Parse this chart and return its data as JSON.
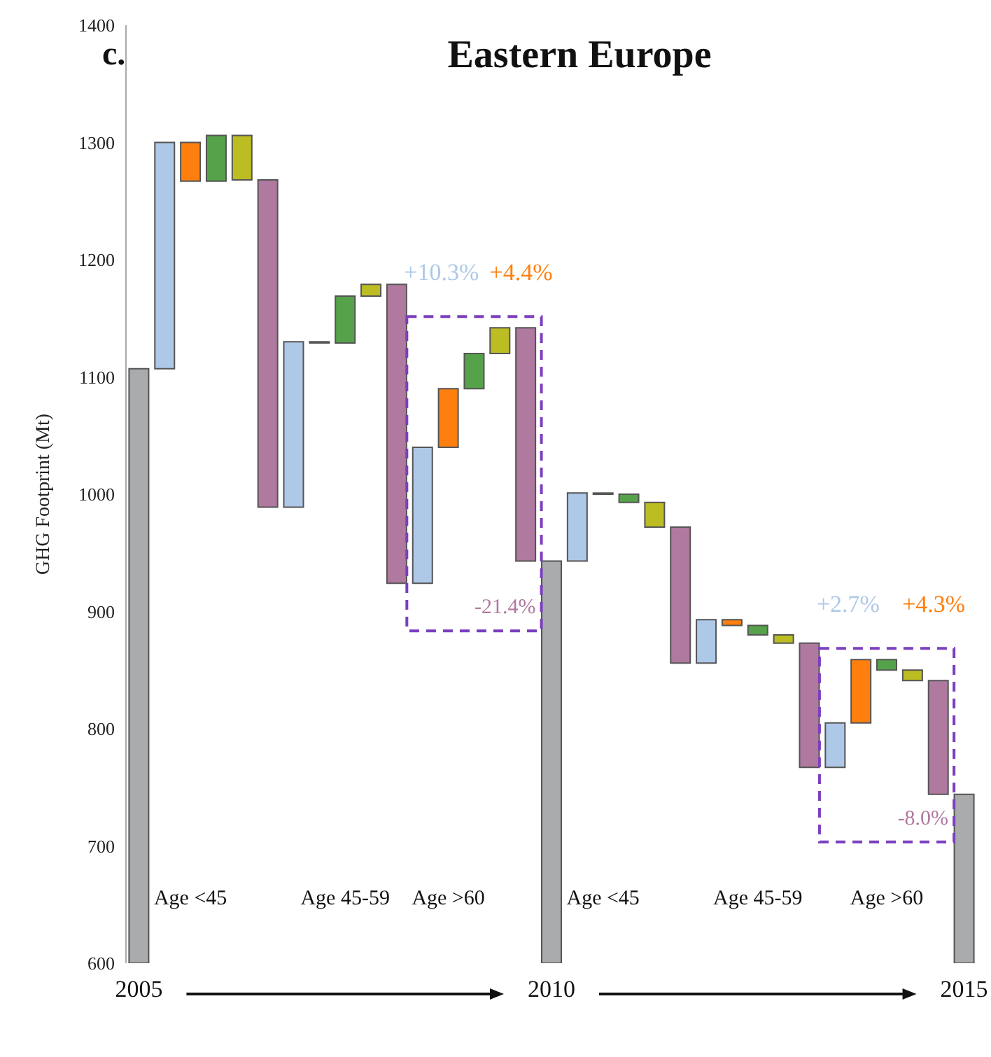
{
  "chart_data": {
    "type": "bar",
    "title": "Eastern Europe",
    "ylabel": "GHG Footprint (Mt)",
    "annotations": [
      "c.",
      "+10.3%",
      "+4.4%",
      "-21.4%",
      "+2.7%",
      "+4.3%",
      "-8.0%"
    ],
    "categories": [
      "2005",
      null,
      "Age <45",
      null,
      null,
      null,
      null,
      null,
      "Age 45-59",
      null,
      null,
      null,
      "Age >60",
      null,
      null,
      null,
      "2010",
      null,
      "Age <45",
      null,
      null,
      null,
      null,
      null,
      "Age 45-59",
      null,
      null,
      null,
      null,
      "Age >60",
      null,
      null,
      "2015"
    ],
    "base": [
      600,
      1107,
      1300,
      1267,
      1306,
      1268,
      989,
      1130,
      1129,
      1169,
      1179,
      924,
      1040,
      1090,
      1120,
      1142,
      600,
      943,
      1001,
      1000,
      993,
      972,
      856,
      893,
      888,
      880,
      873,
      767,
      805,
      859,
      850,
      841,
      600
    ],
    "values": [
      507,
      193,
      -33,
      39,
      -38,
      -279,
      141,
      -1,
      40,
      10,
      -255,
      116,
      50,
      30,
      22,
      -199,
      343,
      58,
      -1,
      -7,
      -21,
      -116,
      37,
      -5,
      -8,
      -7,
      -106,
      38,
      54,
      -9,
      -9,
      -97,
      144
    ],
    "colors": [
      "#a9abac",
      "#aec8e8",
      "#ff7f0e",
      "#55a24a",
      "#bcbd22",
      "#b0799f",
      "#aec8e8",
      "#333333",
      "#55a24a",
      "#bcbd22",
      "#b0799f",
      "#aec8e8",
      "#ff7f0e",
      "#55a24a",
      "#bcbd22",
      "#b0799f",
      "#a9abac",
      "#aec8e8",
      "#333333",
      "#55a24a",
      "#bcbd22",
      "#b0799f",
      "#aec8e8",
      "#ff7f0e",
      "#55a24a",
      "#bcbd22",
      "#b0799f",
      "#aec8e8",
      "#ff7f0e",
      "#55a24a",
      "#bcbd22",
      "#b0799f",
      "#a9abac"
    ],
    "ylim": [
      600,
      1400
    ],
    "yticks": [
      600,
      700,
      800,
      900,
      1000,
      1100,
      1200,
      1300,
      1400
    ],
    "grid": false,
    "legend": false
  }
}
